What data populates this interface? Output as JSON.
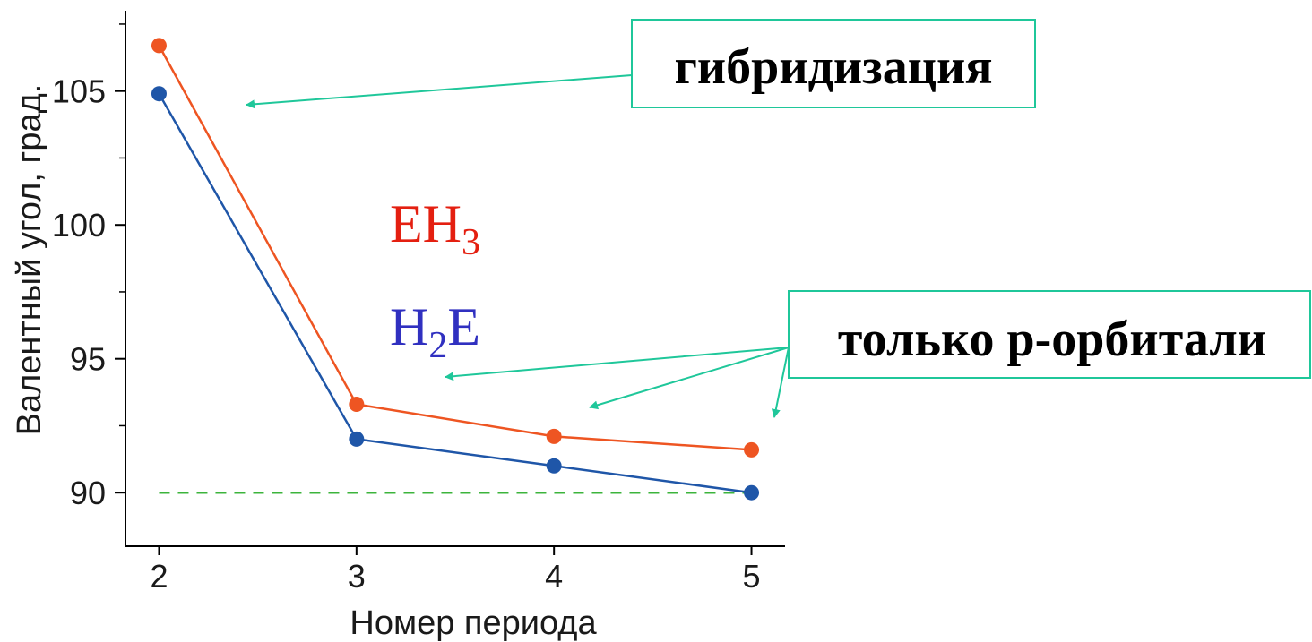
{
  "chart_data": {
    "type": "line",
    "x": [
      2,
      3,
      4,
      5
    ],
    "xlabel": "Номер периода",
    "ylabel": "Валентный угол, град.",
    "xlim": [
      1.83,
      5.17
    ],
    "ylim": [
      88,
      108
    ],
    "xticks": [
      "2",
      "3",
      "4",
      "5"
    ],
    "yticks": [
      "90",
      "95",
      "100",
      "105"
    ],
    "grid": false,
    "series": [
      {
        "name": "EH3",
        "color": "#ee5522",
        "values": [
          106.7,
          93.3,
          92.1,
          91.6
        ]
      },
      {
        "name": "H2E",
        "color": "#1f56a8",
        "values": [
          104.9,
          92.0,
          91.0,
          90.0
        ]
      }
    ],
    "reference_line": {
      "y": 90,
      "style": "dashed",
      "color": "#3cb43c"
    },
    "legend": {
      "eh3": {
        "main": "EH",
        "sub": "3",
        "color": "#e41f10"
      },
      "h2e": {
        "pre": "H",
        "sub": "2",
        "post": "E",
        "color": "#3030c0"
      }
    },
    "annotations": [
      {
        "text": "гибридизация",
        "arrow_color": "#1fc79a"
      },
      {
        "text": "только p-орбитали",
        "arrow_color": "#1fc79a"
      }
    ]
  }
}
